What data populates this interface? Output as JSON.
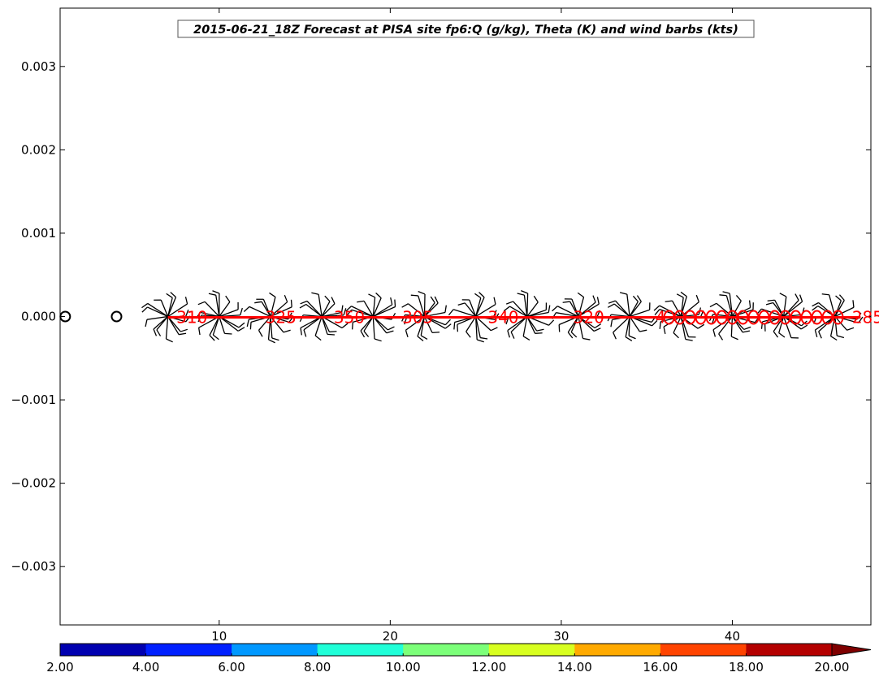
{
  "chart_data": {
    "type": "scatter",
    "title": "2015-06-21_18Z Forecast at PISA site fp6:Q (g/kg), Theta (K) and wind barbs (kts)",
    "xlim": [
      0.7,
      48.1
    ],
    "ylim": [
      -0.0037,
      0.0037
    ],
    "x_ticks": [
      10,
      20,
      30,
      40
    ],
    "x_tick_labels": [
      "10",
      "20",
      "30",
      "40"
    ],
    "y_ticks": [
      0.003,
      0.002,
      0.001,
      0.0,
      -0.001,
      -0.002,
      -0.003
    ],
    "y_tick_labels": [
      "0.003",
      "0.002",
      "0.001",
      "0.000",
      "−0.001",
      "−0.002",
      "−0.003"
    ],
    "humidity_markers": [
      {
        "x": 1.0,
        "y": 0.0
      },
      {
        "x": 4.0,
        "y": 0.0
      }
    ],
    "theta_line": {
      "color": "#ff0000",
      "x": [
        7,
        47.5
      ],
      "y": [
        0.0,
        0.0
      ]
    },
    "theta_labels": [
      {
        "x": 7.5,
        "y": 0.0,
        "text": "310"
      },
      {
        "x": 12.7,
        "y": 0.0,
        "text": "325"
      },
      {
        "x": 16.7,
        "y": 0.0,
        "text": "350"
      },
      {
        "x": 20.7,
        "y": 0.0,
        "text": "305"
      },
      {
        "x": 25.7,
        "y": 0.0,
        "text": "340"
      },
      {
        "x": 30.7,
        "y": 0.0,
        "text": "320"
      },
      {
        "x": 35.5,
        "y": 0.0,
        "text": "4"
      },
      {
        "x": 47.0,
        "y": 0.0,
        "text": "285"
      }
    ],
    "theta_label_cluster": {
      "x_start": 36.3,
      "x_end": 46.6,
      "y": 0.0
    },
    "wind_barb_stations": [
      7,
      10,
      13,
      16,
      19,
      22,
      25,
      28,
      31,
      34,
      37,
      40,
      43,
      46
    ],
    "colorbar": {
      "levels": [
        "2.00",
        "4.00",
        "6.00",
        "8.00",
        "10.00",
        "12.00",
        "14.00",
        "16.00",
        "18.00",
        "20.00"
      ],
      "colors": [
        "#0000b0",
        "#0020ff",
        "#0098ff",
        "#20ffd8",
        "#7cff79",
        "#d8ff20",
        "#ffaa00",
        "#ff4400",
        "#b40000",
        "#7f0000"
      ],
      "extend": "max"
    }
  }
}
